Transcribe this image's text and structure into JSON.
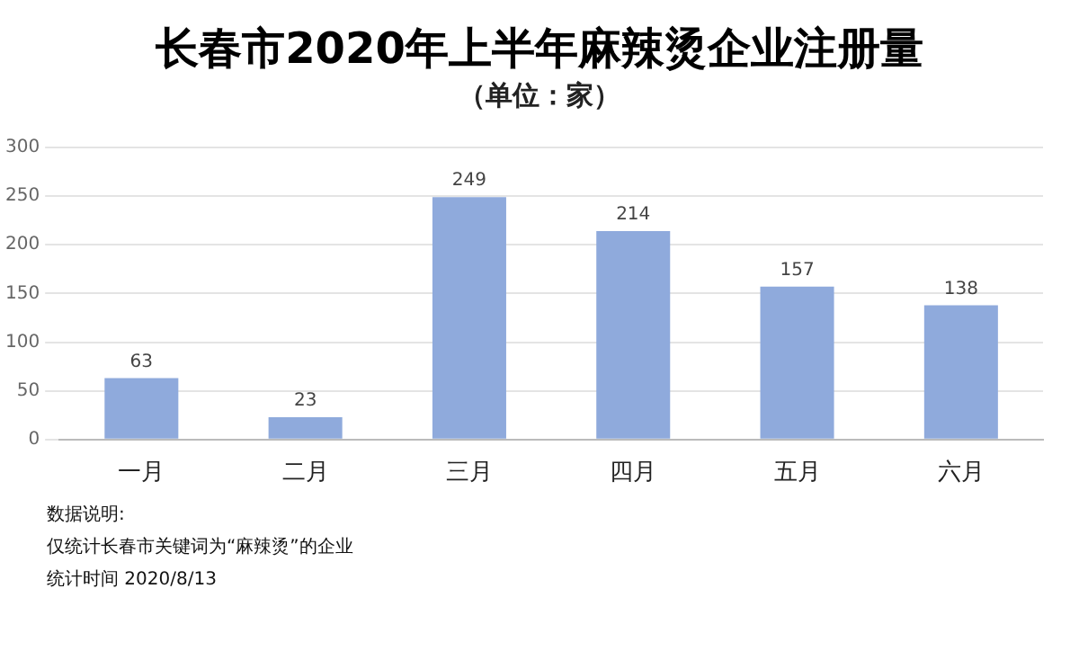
{
  "chart_data": {
    "type": "bar",
    "title": "长春市2020年上半年麻辣烫企业注册量",
    "subtitle": "（单位：家）",
    "categories": [
      "一月",
      "二月",
      "三月",
      "四月",
      "五月",
      "六月"
    ],
    "values": [
      63,
      23,
      249,
      214,
      157,
      138
    ],
    "color": "#8faadc",
    "ylim": [
      0,
      300
    ],
    "yticks": [
      0,
      50,
      100,
      150,
      200,
      250,
      300
    ],
    "grid": "y",
    "legend": false,
    "data_labels": true,
    "annotations": [
      "数据说明:",
      "仅统计长春市关键词为“麻辣烫”的企业",
      "统计时间 2020/8/13"
    ]
  }
}
